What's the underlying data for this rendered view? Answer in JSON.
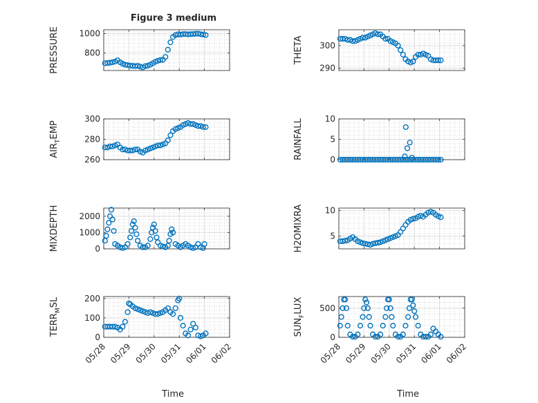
{
  "figure": {
    "title": "Figure 3 medium",
    "marker_color": "#0072BD"
  },
  "chart_data": [
    {
      "type": "scatter",
      "title": "Figure 3 medium",
      "ylabel": "PRESSURE",
      "xlabel": "",
      "xlim": [
        0,
        5
      ],
      "xticks": [
        0,
        1,
        2,
        3,
        4,
        5
      ],
      "xticklabels": [],
      "ylim": [
        620,
        1040
      ],
      "yticks": [
        800,
        1000
      ],
      "yticklabels": [
        "800",
        "1000"
      ],
      "grid": "on",
      "x": [
        0.05,
        0.15,
        0.25,
        0.35,
        0.45,
        0.55,
        0.65,
        0.75,
        0.85,
        0.95,
        1.05,
        1.15,
        1.25,
        1.35,
        1.45,
        1.55,
        1.65,
        1.75,
        1.85,
        1.95,
        2.05,
        2.15,
        2.25,
        2.35,
        2.45,
        2.55,
        2.65,
        2.75,
        2.85,
        2.95,
        3.05,
        3.15,
        3.25,
        3.35,
        3.45,
        3.55,
        3.65,
        3.75,
        3.85,
        3.95,
        4.05
      ],
      "y": [
        695,
        697,
        700,
        705,
        712,
        725,
        705,
        690,
        680,
        675,
        670,
        668,
        665,
        668,
        660,
        652,
        665,
        670,
        680,
        695,
        710,
        720,
        728,
        730,
        760,
        835,
        910,
        965,
        985,
        992,
        990,
        995,
        996,
        992,
        994,
        996,
        998,
        1000,
        994,
        990,
        985
      ]
    },
    {
      "type": "scatter",
      "title": "",
      "ylabel": "THETA",
      "xlabel": "",
      "xlim": [
        0,
        5
      ],
      "xticks": [
        0,
        1,
        2,
        3,
        4,
        5
      ],
      "xticklabels": [],
      "ylim": [
        289,
        307
      ],
      "yticks": [
        290,
        300
      ],
      "yticklabels": [
        "290",
        "300"
      ],
      "grid": "on",
      "x": [
        0.05,
        0.15,
        0.25,
        0.35,
        0.45,
        0.55,
        0.65,
        0.75,
        0.85,
        0.95,
        1.05,
        1.15,
        1.25,
        1.35,
        1.45,
        1.55,
        1.65,
        1.75,
        1.85,
        1.95,
        2.05,
        2.15,
        2.25,
        2.35,
        2.45,
        2.55,
        2.65,
        2.75,
        2.85,
        2.95,
        3.05,
        3.15,
        3.25,
        3.35,
        3.45,
        3.55,
        3.65,
        3.75,
        3.85,
        3.95,
        4.05
      ],
      "y": [
        303,
        303,
        303,
        302.5,
        302.5,
        302,
        302,
        302.5,
        303,
        303.5,
        303.5,
        304,
        304.5,
        305,
        305.5,
        305,
        305,
        304,
        303,
        303,
        302,
        301.5,
        301,
        300,
        298,
        296,
        294,
        293,
        292.5,
        293,
        295,
        296,
        296,
        296.5,
        296,
        295.5,
        294,
        293.5,
        293.5,
        293.5,
        293.5
      ]
    },
    {
      "type": "scatter",
      "title": "",
      "ylabel": "AIR_TEMP",
      "xlabel": "",
      "xlim": [
        0,
        5
      ],
      "xticks": [
        0,
        1,
        2,
        3,
        4,
        5
      ],
      "xticklabels": [],
      "ylim": [
        260,
        300
      ],
      "yticks": [
        260,
        280,
        300
      ],
      "yticklabels": [
        "260",
        "280",
        "300"
      ],
      "grid": "on",
      "x": [
        0.05,
        0.15,
        0.25,
        0.35,
        0.45,
        0.55,
        0.65,
        0.75,
        0.85,
        0.95,
        1.05,
        1.15,
        1.25,
        1.35,
        1.45,
        1.55,
        1.65,
        1.75,
        1.85,
        1.95,
        2.05,
        2.15,
        2.25,
        2.35,
        2.45,
        2.55,
        2.65,
        2.75,
        2.85,
        2.95,
        3.05,
        3.15,
        3.25,
        3.35,
        3.45,
        3.55,
        3.65,
        3.75,
        3.85,
        3.95,
        4.05
      ],
      "y": [
        272,
        272,
        273,
        273,
        274,
        275,
        272,
        270,
        270,
        269,
        269,
        269,
        270,
        270,
        268,
        267,
        269,
        270,
        271,
        272,
        273,
        274,
        274,
        275,
        276,
        279,
        284,
        288,
        290,
        291,
        292,
        294,
        295,
        296,
        295,
        295,
        294,
        293,
        293,
        292,
        292
      ]
    },
    {
      "type": "scatter",
      "title": "",
      "ylabel": "RAINFALL",
      "xlabel": "",
      "xlim": [
        0,
        5
      ],
      "xticks": [
        0,
        1,
        2,
        3,
        4,
        5
      ],
      "xticklabels": [],
      "ylim": [
        0,
        10
      ],
      "yticks": [
        0,
        5,
        10
      ],
      "yticklabels": [
        "0",
        "5",
        "10"
      ],
      "grid": "on",
      "x": [
        0.05,
        0.15,
        0.25,
        0.35,
        0.45,
        0.55,
        0.65,
        0.75,
        0.85,
        0.95,
        1.05,
        1.15,
        1.25,
        1.35,
        1.45,
        1.55,
        1.65,
        1.75,
        1.85,
        1.95,
        2.05,
        2.15,
        2.25,
        2.35,
        2.45,
        2.55,
        2.65,
        2.75,
        2.85,
        2.95,
        3.05,
        3.15,
        3.25,
        3.35,
        3.45,
        3.55,
        3.65,
        3.75,
        3.85,
        3.95,
        4.05,
        2.62,
        2.66,
        2.72,
        2.82,
        2.9
      ],
      "y": [
        0,
        0,
        0,
        0,
        0,
        0,
        0,
        0,
        0,
        0,
        0,
        0,
        0,
        0,
        0,
        0,
        0,
        0,
        0,
        0,
        0,
        0,
        0,
        0,
        0,
        0,
        0,
        0,
        0,
        0,
        0,
        0,
        0,
        0,
        0,
        0,
        0,
        0,
        0,
        0,
        0,
        0.8,
        8,
        2.8,
        4.2,
        0.5
      ]
    },
    {
      "type": "scatter",
      "title": "",
      "ylabel": "MIXDEPTH",
      "xlabel": "",
      "xlim": [
        0,
        5
      ],
      "xticks": [
        0,
        1,
        2,
        3,
        4,
        5
      ],
      "xticklabels": [],
      "ylim": [
        0,
        2500
      ],
      "yticks": [
        0,
        1000,
        2000
      ],
      "yticklabels": [
        "0",
        "1000",
        "2000"
      ],
      "grid": "on",
      "x": [
        0.05,
        0.1,
        0.15,
        0.2,
        0.25,
        0.3,
        0.35,
        0.4,
        0.45,
        0.55,
        0.65,
        0.75,
        0.85,
        0.95,
        1.05,
        1.1,
        1.15,
        1.2,
        1.25,
        1.3,
        1.35,
        1.45,
        1.55,
        1.65,
        1.75,
        1.85,
        1.9,
        1.95,
        2.0,
        2.05,
        2.1,
        2.15,
        2.25,
        2.35,
        2.45,
        2.55,
        2.6,
        2.65,
        2.7,
        2.75,
        2.85,
        2.95,
        3.05,
        3.15,
        3.25,
        3.35,
        3.45,
        3.55,
        3.65,
        3.75,
        3.85,
        3.95,
        4.0
      ],
      "y": [
        500,
        800,
        1200,
        1600,
        2000,
        2400,
        1800,
        1100,
        300,
        200,
        100,
        50,
        100,
        300,
        700,
        1100,
        1500,
        1700,
        1300,
        900,
        500,
        200,
        100,
        100,
        200,
        600,
        1000,
        1300,
        1500,
        1100,
        700,
        400,
        200,
        150,
        100,
        200,
        500,
        900,
        1200,
        1000,
        300,
        200,
        100,
        200,
        300,
        200,
        100,
        50,
        100,
        300,
        100,
        50,
        300
      ]
    },
    {
      "type": "scatter",
      "title": "",
      "ylabel": "H2OMIXRA",
      "xlabel": "",
      "xlim": [
        0,
        5
      ],
      "xticks": [
        0,
        1,
        2,
        3,
        4,
        5
      ],
      "xticklabels": [],
      "ylim": [
        2.5,
        10.5
      ],
      "yticks": [
        5,
        10
      ],
      "yticklabels": [
        "5",
        "10"
      ],
      "grid": "on",
      "x": [
        0.05,
        0.15,
        0.25,
        0.35,
        0.45,
        0.55,
        0.65,
        0.75,
        0.85,
        0.95,
        1.05,
        1.15,
        1.25,
        1.35,
        1.45,
        1.55,
        1.65,
        1.75,
        1.85,
        1.95,
        2.05,
        2.15,
        2.25,
        2.35,
        2.45,
        2.55,
        2.65,
        2.75,
        2.85,
        2.95,
        3.05,
        3.15,
        3.25,
        3.35,
        3.45,
        3.55,
        3.65,
        3.75,
        3.85,
        3.95,
        4.05
      ],
      "y": [
        4,
        4,
        4.1,
        4.2,
        4.5,
        4.8,
        4.4,
        4,
        3.8,
        3.6,
        3.5,
        3.4,
        3.3,
        3.5,
        3.6,
        3.7,
        3.8,
        4,
        4.2,
        4.4,
        4.6,
        4.8,
        5,
        5.2,
        5.8,
        6.5,
        7.2,
        7.8,
        8.2,
        8.4,
        8.5,
        8.8,
        9,
        8.8,
        9.2,
        9.6,
        9.8,
        9.6,
        9.2,
        8.9,
        8.7
      ]
    },
    {
      "type": "scatter",
      "title": "",
      "ylabel": "TERR_MSL",
      "xlabel": "Time",
      "xlim": [
        0,
        5
      ],
      "xticks": [
        0,
        1,
        2,
        3,
        4,
        5
      ],
      "xticklabels": [
        "05/28",
        "05/29",
        "05/30",
        "05/31",
        "06/01",
        "06/02"
      ],
      "ylim": [
        0,
        210
      ],
      "yticks": [
        0,
        100,
        200
      ],
      "yticklabels": [
        "0",
        "100",
        "200"
      ],
      "grid": "on",
      "x": [
        0.05,
        0.15,
        0.25,
        0.35,
        0.45,
        0.55,
        0.65,
        0.75,
        0.85,
        0.95,
        1.0,
        1.05,
        1.15,
        1.25,
        1.35,
        1.45,
        1.55,
        1.65,
        1.75,
        1.85,
        1.95,
        2.05,
        2.15,
        2.25,
        2.35,
        2.45,
        2.55,
        2.65,
        2.75,
        2.85,
        2.95,
        3.0,
        3.05,
        3.15,
        3.25,
        3.35,
        3.45,
        3.55,
        3.65,
        3.75,
        3.85,
        3.95,
        4.05
      ],
      "y": [
        55,
        55,
        55,
        55,
        55,
        50,
        40,
        55,
        80,
        130,
        175,
        170,
        160,
        150,
        145,
        140,
        135,
        130,
        125,
        130,
        125,
        120,
        120,
        125,
        130,
        140,
        150,
        130,
        120,
        150,
        190,
        200,
        100,
        60,
        20,
        10,
        40,
        70,
        50,
        10,
        5,
        10,
        20
      ]
    },
    {
      "type": "scatter",
      "title": "",
      "ylabel": "SUN_FLUX",
      "xlabel": "Time",
      "xlim": [
        0,
        5
      ],
      "xticks": [
        0,
        1,
        2,
        3,
        4,
        5
      ],
      "xticklabels": [
        "05/28",
        "05/29",
        "05/30",
        "05/31",
        "06/01",
        "06/02"
      ],
      "ylim": [
        0,
        700
      ],
      "yticks": [
        0,
        500
      ],
      "yticklabels": [
        "0",
        "500"
      ],
      "grid": "on",
      "x": [
        0.05,
        0.1,
        0.15,
        0.2,
        0.25,
        0.3,
        0.35,
        0.45,
        0.55,
        0.65,
        0.75,
        0.85,
        0.95,
        1.0,
        1.05,
        1.1,
        1.15,
        1.2,
        1.25,
        1.35,
        1.45,
        1.55,
        1.65,
        1.75,
        1.85,
        1.9,
        1.95,
        2.0,
        2.05,
        2.1,
        2.15,
        2.25,
        2.35,
        2.45,
        2.55,
        2.65,
        2.75,
        2.8,
        2.85,
        2.9,
        2.95,
        3.0,
        3.05,
        3.15,
        3.25,
        3.35,
        3.45,
        3.55,
        3.65,
        3.75,
        3.85,
        3.95,
        4.05
      ],
      "y": [
        200,
        350,
        500,
        650,
        650,
        500,
        200,
        50,
        10,
        10,
        50,
        200,
        350,
        500,
        650,
        600,
        500,
        350,
        200,
        50,
        10,
        10,
        50,
        200,
        350,
        500,
        650,
        650,
        500,
        350,
        200,
        50,
        10,
        10,
        50,
        200,
        350,
        500,
        650,
        650,
        550,
        450,
        350,
        200,
        50,
        10,
        10,
        10,
        50,
        150,
        100,
        50,
        10
      ]
    }
  ]
}
